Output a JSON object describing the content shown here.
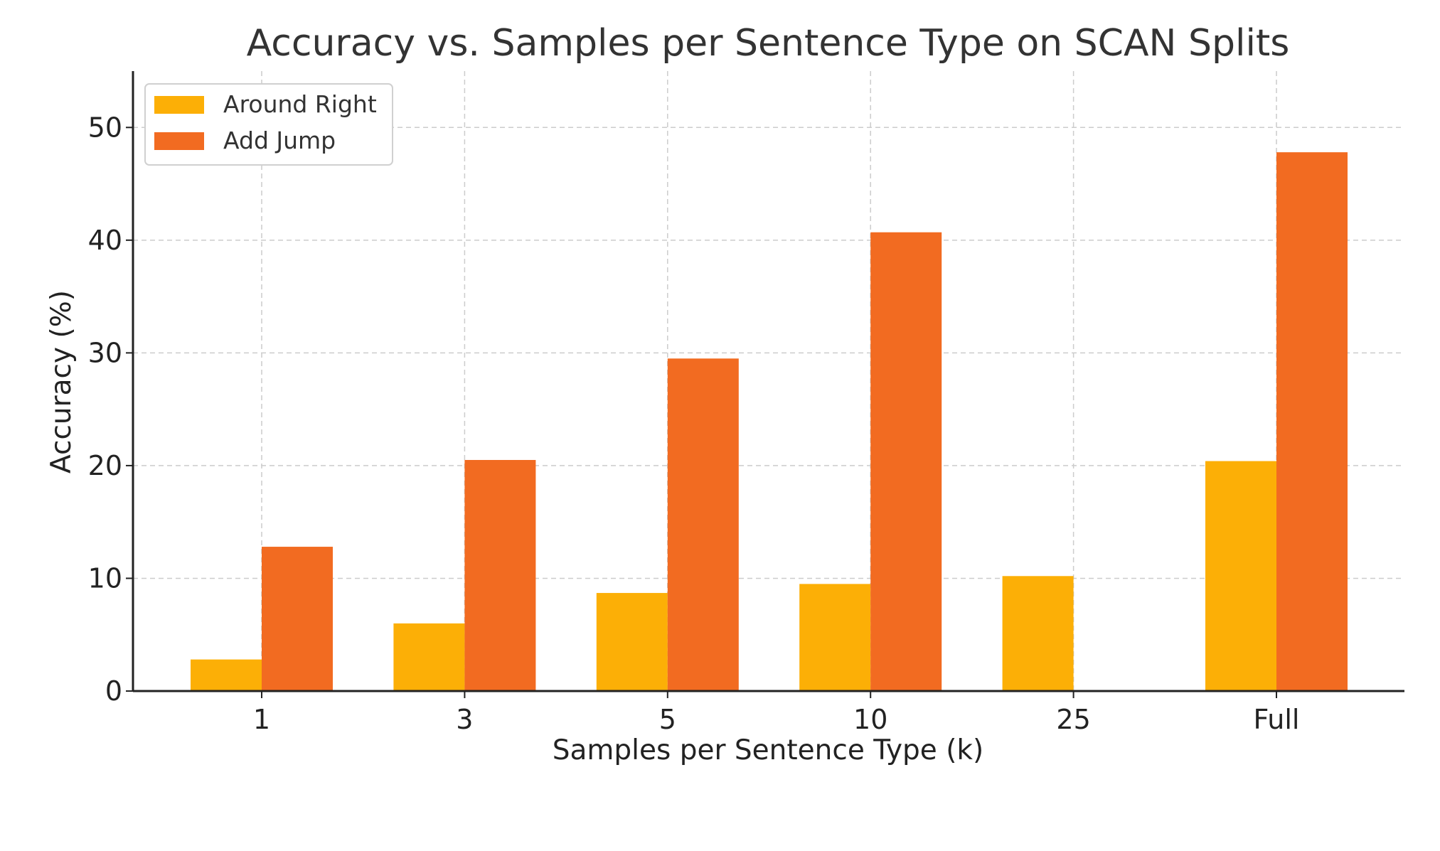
{
  "chart_data": {
    "type": "bar",
    "title": "Accuracy vs. Samples per Sentence Type on SCAN Splits",
    "xlabel": "Samples per Sentence Type (k)",
    "ylabel": "Accuracy (%)",
    "categories": [
      "1",
      "3",
      "5",
      "10",
      "25",
      "Full"
    ],
    "series": [
      {
        "name": "Around Right",
        "color": "#FCAF06",
        "values": [
          2.8,
          6.0,
          8.7,
          9.5,
          10.2,
          20.4
        ]
      },
      {
        "name": "Add Jump",
        "color": "#F26B21",
        "values": [
          12.8,
          20.5,
          29.5,
          40.7,
          0,
          47.8
        ]
      }
    ],
    "ylim": [
      0,
      55
    ],
    "yticks": [
      "0",
      "10",
      "20",
      "30",
      "40",
      "50"
    ],
    "grid": true,
    "legend_position": "top-left"
  }
}
